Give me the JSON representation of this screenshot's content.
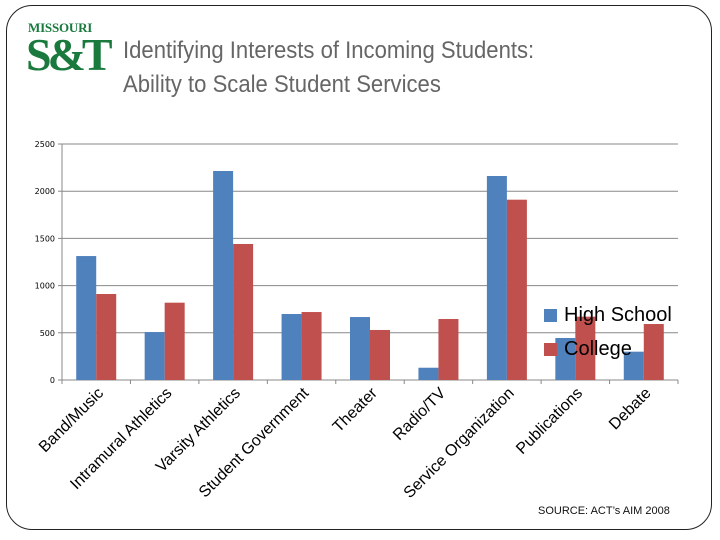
{
  "slide": {
    "logo": {
      "top_text": "MISSOURI",
      "main_text": "S&T",
      "color": "#1a7a3e"
    },
    "title_line1": "Identifying Interests of Incoming Students:",
    "title_line2": "Ability to Scale Student Services",
    "source": "SOURCE: ACT’s AIM 2008"
  },
  "legend": [
    {
      "label": "High School",
      "color": "#4f81bd"
    },
    {
      "label": "College",
      "color": "#c0504d"
    }
  ],
  "chart_data": {
    "type": "bar",
    "title": "Identifying Interests of Incoming Students: Ability to Scale Student Services",
    "xlabel": "",
    "ylabel": "",
    "ylim": [
      0,
      2500
    ],
    "yticks": [
      0,
      500,
      1000,
      1500,
      2000,
      2500
    ],
    "grid": true,
    "legend_position": "right",
    "categories": [
      "Band/Music",
      "Intramural Athletics",
      "Varsity Athletics",
      "Student Government",
      "Theater",
      "Radio/TV",
      "Service Organization",
      "Publications",
      "Debate"
    ],
    "series": [
      {
        "name": "High School",
        "color": "#4f81bd",
        "values": [
          1313,
          508,
          2214,
          699,
          667,
          130,
          2161,
          445,
          300
        ]
      },
      {
        "name": "College",
        "color": "#c0504d",
        "values": [
          911,
          819,
          1441,
          720,
          530,
          646,
          1910,
          671,
          593
        ]
      }
    ]
  }
}
